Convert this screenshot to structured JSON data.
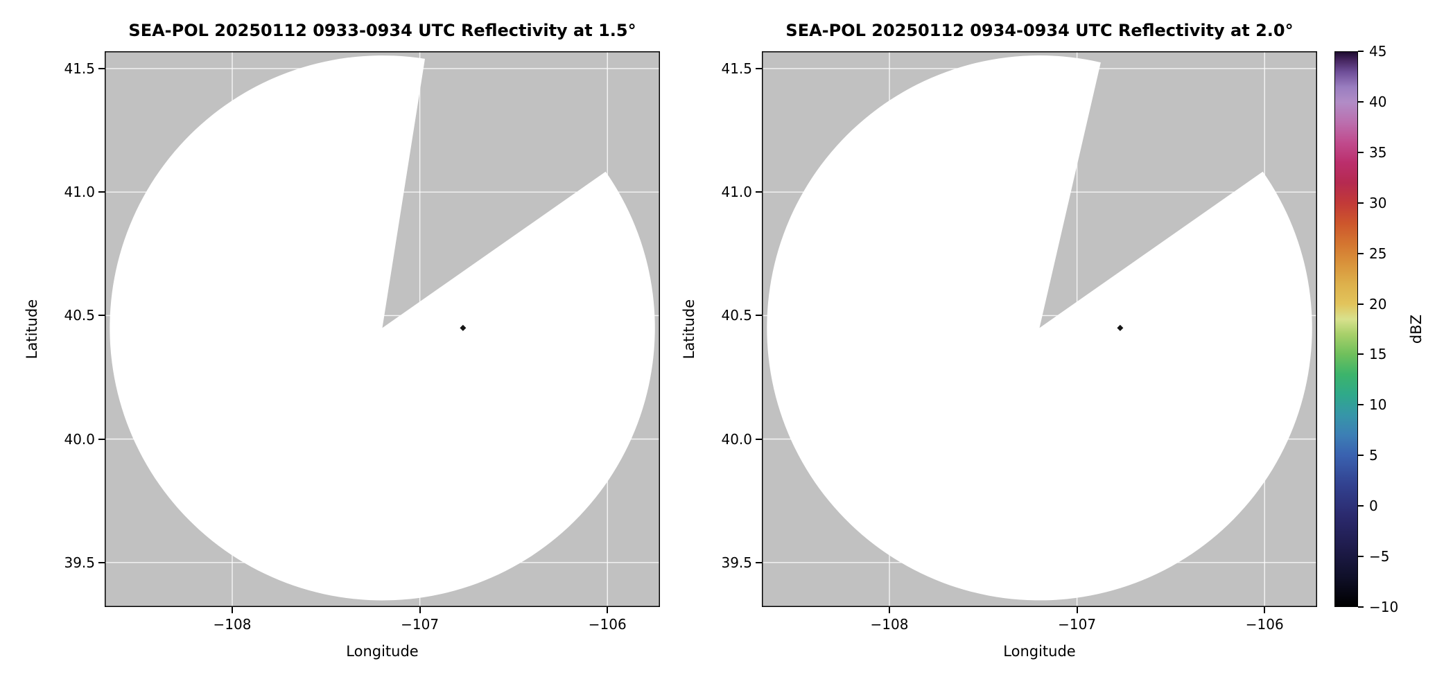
{
  "figure": {
    "background": "#ffffff",
    "panel_background": "#c1c1c1",
    "grid_color": "#ffffff",
    "border_color": "#000000",
    "text_color": "#000000"
  },
  "chart_data": [
    {
      "type": "heatmap",
      "title": "SEA-POL 20250112 0933-0934 UTC Reflectivity at 1.5°",
      "xlabel": "Longitude",
      "ylabel": "Latitude",
      "xlim": [
        -108.68,
        -105.72
      ],
      "ylim": [
        39.32,
        41.57
      ],
      "xticks": [
        -108,
        -107,
        -106
      ],
      "yticks": [
        41.5,
        41.0,
        40.5,
        40.0,
        39.5
      ],
      "grid": true,
      "radar_center": {
        "lon": -107.2,
        "lat": 40.45
      },
      "coverage_radius_lat_deg": 1.103,
      "coverage_color": "#ffffff",
      "missing_sector_azimuth_deg": [
        9,
        55
      ],
      "echo_points": [
        {
          "lon": -106.77,
          "lat": 40.45,
          "color": "#151515"
        }
      ]
    },
    {
      "type": "heatmap",
      "title": "SEA-POL 20250112 0934-0934 UTC Reflectivity at 2.0°",
      "xlabel": "Longitude",
      "ylabel": "Latitude",
      "xlim": [
        -108.68,
        -105.72
      ],
      "ylim": [
        39.32,
        41.57
      ],
      "xticks": [
        -108,
        -107,
        -106
      ],
      "yticks": [
        41.5,
        41.0,
        40.5,
        40.0,
        39.5
      ],
      "grid": true,
      "radar_center": {
        "lon": -107.2,
        "lat": 40.45
      },
      "coverage_radius_lat_deg": 1.103,
      "coverage_color": "#ffffff",
      "missing_sector_azimuth_deg": [
        13,
        55
      ],
      "echo_points": [
        {
          "lon": -106.77,
          "lat": 40.45,
          "color": "#151515"
        }
      ]
    }
  ],
  "colorbar": {
    "label": "dBZ",
    "min": -10,
    "max": 45,
    "ticks": [
      45,
      40,
      35,
      30,
      25,
      20,
      15,
      10,
      5,
      0,
      -5,
      -10
    ],
    "stops": [
      [
        -10,
        "#000000"
      ],
      [
        -7,
        "#10102a"
      ],
      [
        -4,
        "#1f1c4d"
      ],
      [
        -1,
        "#2b2a6e"
      ],
      [
        2,
        "#32418f"
      ],
      [
        5,
        "#3a62b0"
      ],
      [
        7,
        "#3c7fb5"
      ],
      [
        9,
        "#3696a8"
      ],
      [
        11,
        "#2fa98a"
      ],
      [
        13,
        "#3cb46b"
      ],
      [
        15,
        "#6fc05c"
      ],
      [
        17,
        "#a8d06a"
      ],
      [
        18.5,
        "#d8e18d"
      ],
      [
        20,
        "#e2c45c"
      ],
      [
        22,
        "#ddb04b"
      ],
      [
        24,
        "#d9933b"
      ],
      [
        26,
        "#d47530"
      ],
      [
        28,
        "#cd562c"
      ],
      [
        30,
        "#c23a38"
      ],
      [
        32,
        "#b52a50"
      ],
      [
        34,
        "#bb2f6c"
      ],
      [
        36,
        "#c04b8d"
      ],
      [
        38,
        "#bb6fae"
      ],
      [
        40,
        "#b18cc6"
      ],
      [
        41.5,
        "#9a7ec0"
      ],
      [
        43,
        "#6f4f99"
      ],
      [
        44.2,
        "#45255f"
      ],
      [
        45,
        "#1d0c2e"
      ]
    ]
  }
}
